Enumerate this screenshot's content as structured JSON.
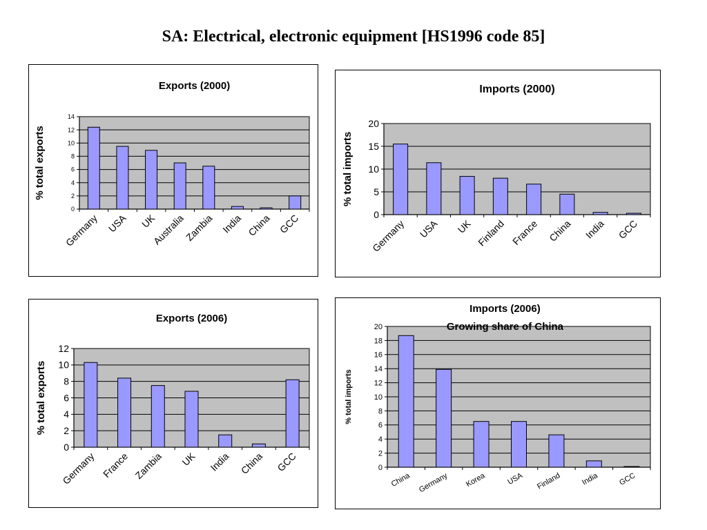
{
  "page": {
    "title": "SA: Electrical, electronic equipment [HS1996 code 85]"
  },
  "colors": {
    "bar": "#9999ff",
    "plot_bg": "#c0c0c0",
    "grid": "#000000",
    "border": "#000000"
  },
  "chart_data": [
    {
      "type": "bar",
      "title": "Exports (2000)",
      "ylabel": "% total exports",
      "categories": [
        "Germany",
        "USA",
        "UK",
        "Australia",
        "Zambia",
        "India",
        "China",
        "GCC"
      ],
      "values": [
        12.4,
        9.5,
        8.9,
        7.0,
        6.5,
        0.4,
        0.2,
        2.0
      ],
      "ylim": [
        0,
        14
      ],
      "yticks": [
        0,
        2,
        4,
        6,
        8,
        10,
        12,
        14
      ],
      "grid": true,
      "legend": "none"
    },
    {
      "type": "bar",
      "title": "Imports (2000)",
      "ylabel": "% total imports",
      "categories": [
        "Germany",
        "USA",
        "UK",
        "Finland",
        "France",
        "China",
        "India",
        "GCC"
      ],
      "values": [
        15.5,
        11.4,
        8.4,
        8.0,
        6.7,
        4.5,
        0.5,
        0.3
      ],
      "ylim": [
        0,
        20
      ],
      "yticks": [
        0,
        5,
        10,
        15,
        20
      ],
      "grid": true,
      "legend": "none"
    },
    {
      "type": "bar",
      "title": "Exports (2006)",
      "ylabel": "%  total exports",
      "categories": [
        "Germany",
        "France",
        "Zambia",
        "UK",
        "India",
        "China",
        "GCC"
      ],
      "values": [
        10.3,
        8.4,
        7.5,
        6.8,
        1.5,
        0.4,
        8.2
      ],
      "ylim": [
        0,
        12
      ],
      "yticks": [
        0,
        2,
        4,
        6,
        8,
        10,
        12
      ],
      "grid": true,
      "legend": "none"
    },
    {
      "type": "bar",
      "title": "Imports (2006)",
      "subtitle": "Growing share of China",
      "ylabel": "%  total imports",
      "categories": [
        "China",
        "Germany",
        "Korea",
        "USA",
        "Finland",
        "India",
        "GCC"
      ],
      "values": [
        18.7,
        13.9,
        6.5,
        6.5,
        4.6,
        0.9,
        0.1
      ],
      "ylim": [
        0,
        20
      ],
      "yticks": [
        0,
        2,
        4,
        6,
        8,
        10,
        12,
        14,
        16,
        18,
        20
      ],
      "grid": true,
      "legend": "none"
    }
  ]
}
